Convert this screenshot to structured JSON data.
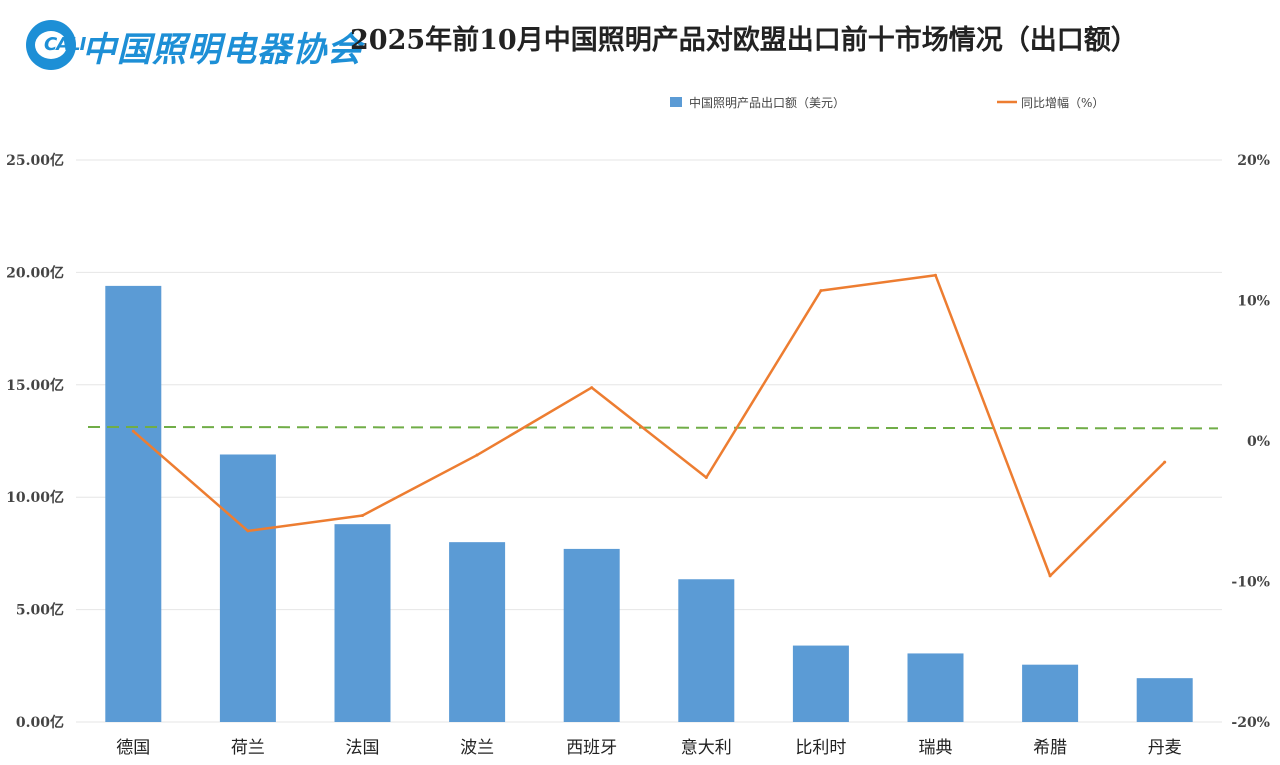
{
  "header": {
    "logo_abbr": "CALI",
    "logo_name": "中国照明电器协会",
    "title": "2025年前10月中国照明产品对欧盟出口前十市场情况（出口额）"
  },
  "colors": {
    "bar": "#5b9bd5",
    "line": "#ed7d31",
    "reference": "#70ad47",
    "grid": "#e6e6e6"
  },
  "chart_data": {
    "type": "bar",
    "title": "2025年前10月中国照明产品对欧盟出口前十市场情况（出口额）",
    "categories": [
      "德国",
      "荷兰",
      "法国",
      "波兰",
      "西班牙",
      "意大利",
      "比利时",
      "瑞典",
      "希腊",
      "丹麦"
    ],
    "series": [
      {
        "name": "中国照明产品出口额（美元）",
        "type": "bar",
        "axis": "left",
        "values": [
          19.4,
          11.9,
          8.8,
          8.0,
          7.7,
          6.35,
          3.4,
          3.05,
          2.55,
          1.95
        ]
      },
      {
        "name": "同比增幅（%）",
        "type": "line",
        "axis": "right",
        "values": [
          0.7,
          -6.4,
          -5.3,
          -1.0,
          3.8,
          -2.6,
          10.7,
          11.8,
          -9.6,
          -1.5
        ]
      }
    ],
    "reference_line": {
      "axis": "right",
      "start": 1.0,
      "end": 0.9,
      "style": "dashed"
    },
    "y_left": {
      "range": [
        0,
        25
      ],
      "ticks": [
        "0.00亿",
        "5.00亿",
        "10.00亿",
        "15.00亿",
        "20.00亿",
        "25.00亿"
      ]
    },
    "y_right": {
      "range": [
        -20,
        20
      ],
      "ticks": [
        "-20%",
        "-10%",
        "0%",
        "10%",
        "20%"
      ]
    },
    "grid": true,
    "legend": "top-right"
  }
}
